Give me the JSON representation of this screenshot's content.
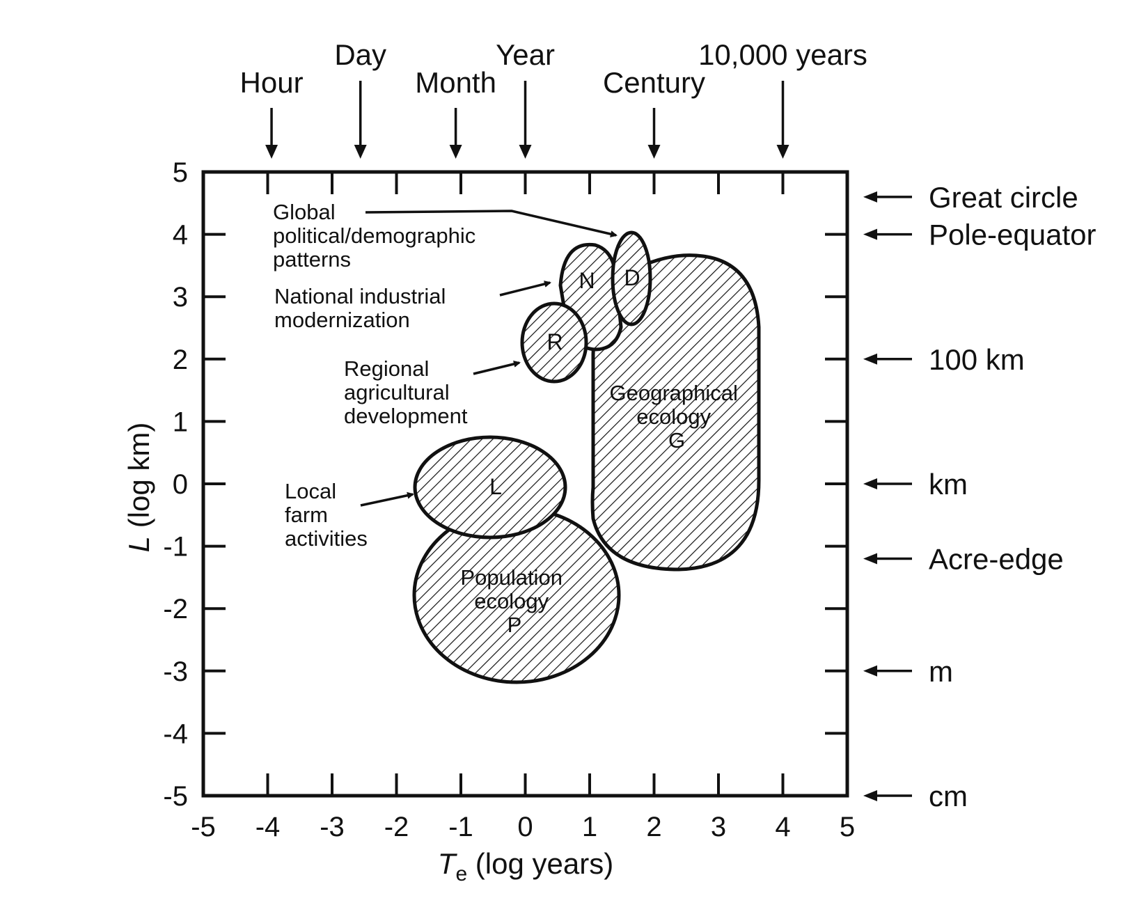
{
  "x_axis": {
    "title_italic": "T",
    "title_sub": "e",
    "title_rest": " (log years)",
    "ticks": [
      "-5",
      "-4",
      "-3",
      "-2",
      "-1",
      "0",
      "1",
      "2",
      "3",
      "4",
      "5"
    ],
    "range": [
      -5,
      5
    ]
  },
  "y_axis": {
    "title_italic": "L",
    "title_rest": " (log km)",
    "ticks": [
      "5",
      "4",
      "3",
      "2",
      "1",
      "0",
      "-1",
      "-2",
      "-3",
      "-4",
      "-5"
    ],
    "range": [
      -5,
      5
    ]
  },
  "top_markers": [
    {
      "label": "Hour",
      "x": -3.94
    },
    {
      "label": "Day",
      "x": -2.56
    },
    {
      "label": "Month",
      "x": -1.08
    },
    {
      "label": "Year",
      "x": 0
    },
    {
      "label": "Century",
      "x": 2
    },
    {
      "label": "10,000 years",
      "x": 4
    }
  ],
  "right_markers": [
    {
      "label": "Great circle",
      "y": 4.6
    },
    {
      "label": "Pole-equator",
      "y": 4.0
    },
    {
      "label": "100 km",
      "y": 2.0
    },
    {
      "label": "km",
      "y": 0
    },
    {
      "label": "Acre-edge",
      "y": -1.2
    },
    {
      "label": "m",
      "y": -3.0
    },
    {
      "label": "cm",
      "y": -5.0
    }
  ],
  "regions": {
    "global": [
      "Global",
      "political/demographic",
      "patterns"
    ],
    "national": [
      "National industrial",
      "modernization"
    ],
    "regional": [
      "Regional",
      "agricultural",
      "development"
    ],
    "local": [
      "Local",
      "farm",
      "activities"
    ],
    "geographical": [
      "Geographical",
      "ecology",
      "G"
    ],
    "population": [
      "Population",
      "ecology",
      "P"
    ]
  },
  "blob_letters": {
    "N": "N",
    "D": "D",
    "R": "R",
    "L": "L"
  },
  "colors": {
    "ink": "#111111",
    "background": "#ffffff"
  }
}
